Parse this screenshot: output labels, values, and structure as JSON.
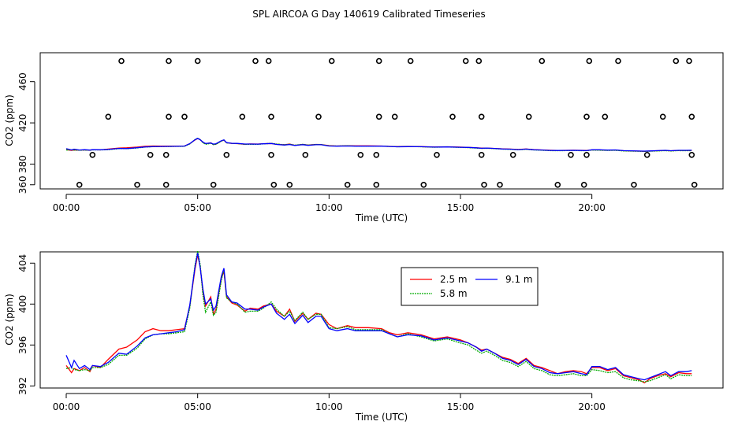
{
  "figure_title": "SPL AIRCOA G  Day 140619  Calibrated Timeseries",
  "chart_data": [
    {
      "type": "scatter+line",
      "xlabel": "Time (UTC)",
      "ylabel": "CO2 (ppm)",
      "xlim": [
        0,
        24
      ],
      "ylim": [
        356,
        488
      ],
      "x_ticks": [
        0,
        5,
        10,
        15,
        20
      ],
      "x_tick_labels": [
        "00:00",
        "05:00",
        "10:00",
        "15:00",
        "20:00"
      ],
      "y_ticks": [
        360,
        380,
        420,
        460
      ],
      "y_tick_labels": [
        "360",
        "380",
        "420",
        "460"
      ],
      "points": [
        [
          0.5,
          360
        ],
        [
          1.0,
          389
        ],
        [
          1.6,
          426
        ],
        [
          2.1,
          480
        ],
        [
          2.7,
          360
        ],
        [
          3.2,
          389
        ],
        [
          3.8,
          360
        ],
        [
          3.8,
          389
        ],
        [
          3.9,
          426
        ],
        [
          3.9,
          480
        ],
        [
          4.5,
          426
        ],
        [
          5.0,
          480
        ],
        [
          5.6,
          360
        ],
        [
          6.1,
          389
        ],
        [
          6.7,
          426
        ],
        [
          7.2,
          480
        ],
        [
          7.7,
          480
        ],
        [
          7.8,
          426
        ],
        [
          7.8,
          389
        ],
        [
          7.9,
          360
        ],
        [
          8.5,
          360
        ],
        [
          9.1,
          389
        ],
        [
          9.6,
          426
        ],
        [
          10.1,
          480
        ],
        [
          10.7,
          360
        ],
        [
          11.2,
          389
        ],
        [
          11.8,
          360
        ],
        [
          11.8,
          389
        ],
        [
          11.9,
          426
        ],
        [
          11.9,
          480
        ],
        [
          12.5,
          426
        ],
        [
          13.1,
          480
        ],
        [
          13.6,
          360
        ],
        [
          14.1,
          389
        ],
        [
          14.7,
          426
        ],
        [
          15.2,
          480
        ],
        [
          15.7,
          480
        ],
        [
          15.8,
          426
        ],
        [
          15.8,
          389
        ],
        [
          15.9,
          360
        ],
        [
          16.5,
          360
        ],
        [
          17.0,
          389
        ],
        [
          17.6,
          426
        ],
        [
          18.1,
          480
        ],
        [
          18.7,
          360
        ],
        [
          19.2,
          389
        ],
        [
          19.7,
          360
        ],
        [
          19.8,
          389
        ],
        [
          19.8,
          426
        ],
        [
          19.9,
          480
        ],
        [
          20.5,
          426
        ],
        [
          21.0,
          480
        ],
        [
          21.6,
          360
        ],
        [
          22.1,
          389
        ],
        [
          22.7,
          426
        ],
        [
          23.2,
          480
        ],
        [
          23.7,
          480
        ],
        [
          23.8,
          426
        ],
        [
          23.8,
          389
        ],
        [
          23.9,
          360
        ]
      ],
      "series_ref": "bottom"
    },
    {
      "type": "line",
      "xlabel": "Time (UTC)",
      "ylabel": "CO2 (ppm)",
      "xlim": [
        0,
        24
      ],
      "ylim": [
        391.8,
        405.1
      ],
      "x_ticks": [
        0,
        5,
        10,
        15,
        20
      ],
      "x_tick_labels": [
        "00:00",
        "05:00",
        "10:00",
        "15:00",
        "20:00"
      ],
      "y_ticks": [
        392,
        396,
        400,
        404
      ],
      "y_tick_labels": [
        "392",
        "396",
        "400",
        "404"
      ],
      "legend_position": "top-center",
      "series": [
        {
          "name": "2.5 m",
          "color": "#ff0000",
          "x": [
            0,
            0.2,
            0.3,
            0.5,
            0.7,
            0.9,
            1.0,
            1.3,
            1.6,
            2.0,
            2.3,
            2.7,
            3.0,
            3.3,
            3.6,
            3.9,
            4.2,
            4.5,
            4.7,
            4.9,
            5.0,
            5.1,
            5.2,
            5.3,
            5.5,
            5.6,
            5.7,
            5.9,
            6.0,
            6.1,
            6.3,
            6.5,
            6.8,
            7.0,
            7.3,
            7.5,
            7.8,
            8.0,
            8.3,
            8.5,
            8.7,
            9.0,
            9.2,
            9.5,
            9.7,
            10.0,
            10.3,
            10.7,
            11.0,
            11.5,
            12.0,
            12.3,
            12.6,
            13.0,
            13.5,
            14.0,
            14.5,
            15.0,
            15.3,
            15.6,
            15.8,
            16.0,
            16.3,
            16.6,
            16.9,
            17.2,
            17.5,
            17.8,
            18.1,
            18.4,
            18.7,
            19.0,
            19.3,
            19.6,
            19.8,
            20.0,
            20.3,
            20.6,
            20.9,
            21.2,
            21.5,
            21.8,
            22.0,
            22.2,
            22.5,
            22.8,
            23.0,
            23.3,
            23.6,
            23.8
          ],
          "values": [
            394.0,
            393.3,
            393.7,
            393.5,
            393.8,
            393.4,
            394.0,
            393.8,
            394.6,
            395.6,
            395.8,
            396.5,
            397.3,
            397.6,
            397.4,
            397.4,
            397.5,
            397.6,
            399.8,
            403.4,
            404.8,
            403.6,
            401.2,
            399.8,
            400.7,
            399.0,
            399.5,
            402.5,
            403.2,
            400.7,
            400.1,
            399.9,
            399.3,
            399.6,
            399.5,
            399.8,
            400.0,
            399.3,
            398.8,
            399.5,
            398.3,
            399.1,
            398.5,
            399.1,
            399.0,
            398.0,
            397.6,
            397.9,
            397.7,
            397.7,
            397.6,
            397.2,
            397.0,
            397.2,
            397.0,
            396.6,
            396.8,
            396.5,
            396.2,
            395.8,
            395.5,
            395.6,
            395.2,
            394.8,
            394.6,
            394.2,
            394.7,
            394.0,
            393.8,
            393.5,
            393.2,
            393.4,
            393.5,
            393.4,
            393.2,
            393.8,
            393.8,
            393.5,
            393.7,
            393.0,
            392.8,
            392.6,
            392.3,
            392.7,
            393.0,
            393.2,
            392.9,
            393.3,
            393.2,
            393.2
          ]
        },
        {
          "name": "5.8 m",
          "color": "#00aa00",
          "x": [
            0,
            0.2,
            0.3,
            0.5,
            0.7,
            0.9,
            1.0,
            1.3,
            1.6,
            2.0,
            2.3,
            2.7,
            3.0,
            3.3,
            3.6,
            3.9,
            4.2,
            4.5,
            4.7,
            4.9,
            5.0,
            5.1,
            5.2,
            5.3,
            5.5,
            5.6,
            5.7,
            5.9,
            6.0,
            6.1,
            6.3,
            6.5,
            6.8,
            7.0,
            7.3,
            7.5,
            7.8,
            8.0,
            8.3,
            8.5,
            8.7,
            9.0,
            9.2,
            9.5,
            9.7,
            10.0,
            10.3,
            10.7,
            11.0,
            11.5,
            12.0,
            12.3,
            12.6,
            13.0,
            13.5,
            14.0,
            14.5,
            15.0,
            15.3,
            15.6,
            15.8,
            16.0,
            16.3,
            16.6,
            16.9,
            17.2,
            17.5,
            17.8,
            18.1,
            18.4,
            18.7,
            19.0,
            19.3,
            19.6,
            19.8,
            20.0,
            20.3,
            20.6,
            20.9,
            21.2,
            21.5,
            21.8,
            22.0,
            22.2,
            22.5,
            22.8,
            23.0,
            23.3,
            23.6,
            23.8
          ],
          "values": [
            393.7,
            393.8,
            393.6,
            393.5,
            393.6,
            393.5,
            393.8,
            393.8,
            394.1,
            395.0,
            395.0,
            395.7,
            396.6,
            397.0,
            397.1,
            397.1,
            397.2,
            397.3,
            399.6,
            403.8,
            405.2,
            403.8,
            400.9,
            399.2,
            400.2,
            398.9,
            399.2,
            402.3,
            403.4,
            400.6,
            400.2,
            400.0,
            399.2,
            399.3,
            399.3,
            399.6,
            400.2,
            399.5,
            398.8,
            399.3,
            398.4,
            399.2,
            398.5,
            399.0,
            399.0,
            397.7,
            397.6,
            397.8,
            397.5,
            397.5,
            397.5,
            397.1,
            396.8,
            397.1,
            396.8,
            396.4,
            396.6,
            396.2,
            396.0,
            395.5,
            395.2,
            395.4,
            395.0,
            394.5,
            394.3,
            393.9,
            394.4,
            393.7,
            393.5,
            393.1,
            393.0,
            393.1,
            393.2,
            393.0,
            393.0,
            393.6,
            393.5,
            393.3,
            393.4,
            392.8,
            392.6,
            392.5,
            392.4,
            392.5,
            392.8,
            393.1,
            392.7,
            393.1,
            393.0,
            393.0
          ]
        },
        {
          "name": "9.1 m",
          "color": "#0000ff",
          "x": [
            0,
            0.2,
            0.3,
            0.5,
            0.7,
            0.9,
            1.0,
            1.3,
            1.6,
            2.0,
            2.3,
            2.7,
            3.0,
            3.3,
            3.6,
            3.9,
            4.2,
            4.5,
            4.7,
            4.9,
            5.0,
            5.1,
            5.2,
            5.3,
            5.5,
            5.6,
            5.7,
            5.9,
            6.0,
            6.1,
            6.3,
            6.5,
            6.8,
            7.0,
            7.3,
            7.5,
            7.8,
            8.0,
            8.3,
            8.5,
            8.7,
            9.0,
            9.2,
            9.5,
            9.7,
            10.0,
            10.3,
            10.7,
            11.0,
            11.5,
            12.0,
            12.3,
            12.6,
            13.0,
            13.5,
            14.0,
            14.5,
            15.0,
            15.3,
            15.6,
            15.8,
            16.0,
            16.3,
            16.6,
            16.9,
            17.2,
            17.5,
            17.8,
            18.1,
            18.4,
            18.7,
            19.0,
            19.3,
            19.6,
            19.8,
            20.0,
            20.3,
            20.6,
            20.9,
            21.2,
            21.5,
            21.8,
            22.0,
            22.2,
            22.5,
            22.8,
            23.0,
            23.3,
            23.6,
            23.8
          ],
          "values": [
            395.0,
            393.8,
            394.5,
            393.7,
            394.0,
            393.6,
            394.0,
            393.9,
            394.3,
            395.2,
            395.1,
            395.9,
            396.7,
            397.0,
            397.1,
            397.2,
            397.3,
            397.5,
            399.9,
            403.6,
            405.0,
            403.5,
            401.5,
            400.0,
            400.5,
            399.4,
            399.8,
            402.7,
            403.5,
            400.9,
            400.2,
            400.1,
            399.5,
            399.5,
            399.4,
            399.7,
            400.0,
            399.1,
            398.5,
            399.0,
            398.1,
            398.9,
            398.2,
            398.8,
            398.8,
            397.6,
            397.4,
            397.6,
            397.4,
            397.4,
            397.4,
            397.1,
            396.8,
            397.0,
            396.9,
            396.5,
            396.7,
            396.4,
            396.2,
            395.8,
            395.4,
            395.6,
            395.2,
            394.7,
            394.5,
            394.1,
            394.6,
            393.9,
            393.7,
            393.3,
            393.2,
            393.3,
            393.4,
            393.2,
            393.1,
            393.9,
            393.9,
            393.6,
            393.8,
            393.1,
            392.9,
            392.7,
            392.6,
            392.8,
            393.1,
            393.4,
            393.0,
            393.4,
            393.4,
            393.5
          ]
        }
      ]
    }
  ]
}
